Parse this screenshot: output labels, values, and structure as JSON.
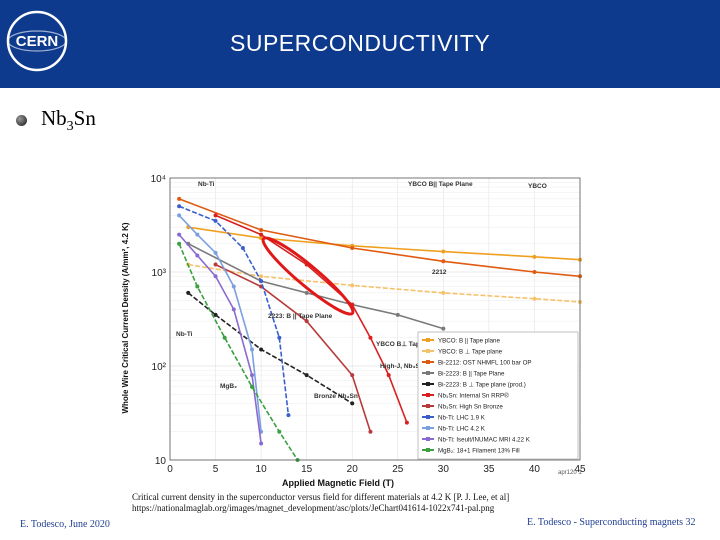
{
  "slide": {
    "title": "SUPERCONDUCTIVITY",
    "bullet": {
      "base": "Nb",
      "sub": "3",
      "rest": "Sn"
    },
    "caption_text": "Critical current density in the superconductor versus field for different materials at 4.2 K [P. J. Lee, et al]",
    "caption_url": "https://nationalmaglab.org/images/magnet_development/asc/plots/JeChart041614-1022x741-pal.png",
    "footer_left": "E. Todesco, June 2020",
    "footer_right": "E. Todesco - Superconducting magnets 32",
    "logo_text": "CERN",
    "colors": {
      "header": "#0e3a8e",
      "footer_text": "#1f3d91"
    }
  },
  "chart_data": {
    "type": "line",
    "xlabel": "Applied Magnetic Field (T)",
    "ylabel": "Whole Wire Critical Current Density (A/mm², 4.2 K)",
    "xlim": [
      0,
      45
    ],
    "ylim": [
      10,
      10000
    ],
    "y_scale": "log",
    "x_ticks": [
      0,
      5,
      10,
      15,
      20,
      25,
      30,
      35,
      40,
      45
    ],
    "y_tick_labels": [
      "10",
      "10²",
      "10³",
      "10⁴"
    ],
    "grid": true,
    "legend_position": "right",
    "corner_label": "apr120 1",
    "series": [
      {
        "name": "YBCO: B || Tape plane",
        "color": "#f0a020",
        "x": [
          2,
          10,
          20,
          30,
          40,
          45
        ],
        "y": [
          3000,
          2300,
          1900,
          1650,
          1450,
          1350
        ]
      },
      {
        "name": "YBCO: B ⊥ Tape plane",
        "color": "#f5c26b",
        "x": [
          2,
          10,
          20,
          30,
          40,
          45
        ],
        "y": [
          1200,
          900,
          720,
          600,
          520,
          480
        ]
      },
      {
        "name": "Bi-2212: OST NHMFL 100 bar OP",
        "color": "#e05a10",
        "x": [
          1,
          10,
          20,
          30,
          40,
          45
        ],
        "y": [
          6000,
          2800,
          1800,
          1300,
          1000,
          900
        ]
      },
      {
        "name": "Bi-2223: B || Tape Plane",
        "color": "#7a7a7a",
        "x": [
          2,
          10,
          15,
          20,
          25,
          30
        ],
        "y": [
          2000,
          800,
          600,
          450,
          350,
          250
        ]
      },
      {
        "name": "Bi-2223: B ⊥ Tape plane (prod.)",
        "color": "#222222",
        "x": [
          2,
          5,
          10,
          15,
          20
        ],
        "y": [
          600,
          350,
          150,
          80,
          40
        ]
      },
      {
        "name": "Nb₃Sn: Internal Sn RRP®",
        "color": "#d92020",
        "x": [
          5,
          10,
          15,
          20,
          22,
          24,
          26
        ],
        "y": [
          4000,
          2500,
          1200,
          450,
          200,
          80,
          25
        ]
      },
      {
        "name": "Nb₃Sn: High Sn Bronze",
        "color": "#b83a3a",
        "x": [
          5,
          10,
          15,
          20,
          22
        ],
        "y": [
          1200,
          700,
          300,
          80,
          20
        ]
      },
      {
        "name": "Nb-Ti: LHC 1.9 K",
        "color": "#3a5fcd",
        "x": [
          1,
          5,
          8,
          10,
          12,
          13
        ],
        "y": [
          5000,
          3500,
          1800,
          800,
          200,
          30
        ]
      },
      {
        "name": "Nb-Ti: LHC 4.2 K",
        "color": "#7aa0e0",
        "x": [
          1,
          3,
          5,
          7,
          9,
          10
        ],
        "y": [
          4000,
          2500,
          1600,
          700,
          150,
          20
        ]
      },
      {
        "name": "Nb-Ti: Iseult/INUMAC MRI 4.22 K",
        "color": "#8a6ad0",
        "x": [
          1,
          3,
          5,
          7,
          9,
          10
        ],
        "y": [
          2500,
          1500,
          900,
          400,
          80,
          15
        ]
      },
      {
        "name": "MgB₂: 18+1 Filament 13% Fill",
        "color": "#3aa040",
        "x": [
          1,
          3,
          6,
          9,
          12,
          14
        ],
        "y": [
          2000,
          700,
          200,
          60,
          20,
          10
        ]
      }
    ],
    "annotations": [
      "Nb-Ti",
      "Nb-Ti",
      "2223: B || Tape Plane",
      "YBCO B|| Tape Plane",
      "YBCO B⊥ Tape Plane",
      "High-J, Nb₃Sn",
      "Bronze Nb₃Sn",
      "MgB₂",
      "2212",
      "YBCO"
    ]
  }
}
